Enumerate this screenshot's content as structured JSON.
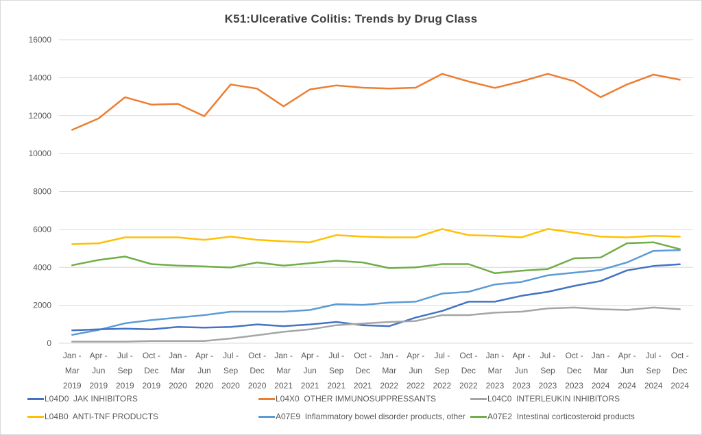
{
  "chart_data": {
    "type": "line",
    "title": "K51:Ulcerative Colitis: Trends by Drug Class",
    "xlabel": "",
    "ylabel": "",
    "ylim": [
      0,
      16000
    ],
    "yticks": [
      0,
      2000,
      4000,
      6000,
      8000,
      10000,
      12000,
      14000,
      16000
    ],
    "grid": true,
    "legend_position": "bottom",
    "categories": [
      [
        "Jan -",
        "Mar",
        "2019"
      ],
      [
        "Apr -",
        "Jun",
        "2019"
      ],
      [
        "Jul -",
        "Sep",
        "2019"
      ],
      [
        "Oct -",
        "Dec",
        "2019"
      ],
      [
        "Jan -",
        "Mar",
        "2020"
      ],
      [
        "Apr -",
        "Jun",
        "2020"
      ],
      [
        "Jul -",
        "Sep",
        "2020"
      ],
      [
        "Oct -",
        "Dec",
        "2020"
      ],
      [
        "Jan -",
        "Mar",
        "2021"
      ],
      [
        "Apr -",
        "Jun",
        "2021"
      ],
      [
        "Jul -",
        "Sep",
        "2021"
      ],
      [
        "Oct -",
        "Dec",
        "2021"
      ],
      [
        "Jan -",
        "Mar",
        "2022"
      ],
      [
        "Apr -",
        "Jun",
        "2022"
      ],
      [
        "Jul -",
        "Sep",
        "2022"
      ],
      [
        "Oct -",
        "Dec",
        "2022"
      ],
      [
        "Jan -",
        "Mar",
        "2023"
      ],
      [
        "Apr -",
        "Jun",
        "2023"
      ],
      [
        "Jul -",
        "Sep",
        "2023"
      ],
      [
        "Oct -",
        "Dec",
        "2023"
      ],
      [
        "Jan -",
        "Mar",
        "2024"
      ],
      [
        "Apr -",
        "Jun",
        "2024"
      ],
      [
        "Jul -",
        "Sep",
        "2024"
      ],
      [
        "Oct -",
        "Dec",
        "2024"
      ]
    ],
    "series": [
      {
        "name": "L04D0  JAK INHIBITORS",
        "color": "#4472C4",
        "values": [
          680,
          730,
          770,
          730,
          860,
          820,
          860,
          990,
          900,
          990,
          1120,
          950,
          900,
          1350,
          1700,
          2190,
          2190,
          2500,
          2710,
          3020,
          3280,
          3840,
          4070,
          4160
        ]
      },
      {
        "name": "L04X0  OTHER IMMUNOSUPPRESSANTS",
        "color": "#ED7D31",
        "values": [
          11250,
          11850,
          12970,
          12580,
          12620,
          11970,
          13640,
          13420,
          12490,
          13380,
          13590,
          13470,
          13430,
          13470,
          14200,
          13800,
          13460,
          13800,
          14200,
          13810,
          12970,
          13640,
          14160,
          13890
        ]
      },
      {
        "name": "L04C0  INTERLEUKIN INHIBITORS",
        "color": "#A5A5A5",
        "values": [
          80,
          80,
          80,
          120,
          120,
          120,
          250,
          420,
          600,
          730,
          950,
          1040,
          1120,
          1170,
          1480,
          1480,
          1610,
          1660,
          1830,
          1880,
          1790,
          1750,
          1880,
          1790
        ]
      },
      {
        "name": "L04B0  ANTI-TNF PRODUCTS",
        "color": "#FFC000",
        "values": [
          5220,
          5270,
          5580,
          5580,
          5580,
          5450,
          5620,
          5450,
          5370,
          5320,
          5700,
          5620,
          5580,
          5580,
          6020,
          5700,
          5660,
          5580,
          6020,
          5830,
          5620,
          5580,
          5660,
          5620
        ]
      },
      {
        "name": "A07E9  Inflammatory bowel disorder products, other",
        "color": "#5B9BD5",
        "values": [
          440,
          700,
          1050,
          1220,
          1350,
          1480,
          1660,
          1660,
          1660,
          1750,
          2060,
          2020,
          2140,
          2190,
          2620,
          2710,
          3100,
          3230,
          3580,
          3720,
          3860,
          4260,
          4870,
          4910
        ]
      },
      {
        "name": "A07E2  Intestinal corticosteroid products",
        "color": "#70AD47",
        "values": [
          4110,
          4390,
          4570,
          4170,
          4090,
          4050,
          3990,
          4260,
          4090,
          4220,
          4350,
          4260,
          3960,
          4000,
          4170,
          4170,
          3690,
          3820,
          3910,
          4480,
          4520,
          5270,
          5320,
          4960
        ]
      }
    ]
  }
}
